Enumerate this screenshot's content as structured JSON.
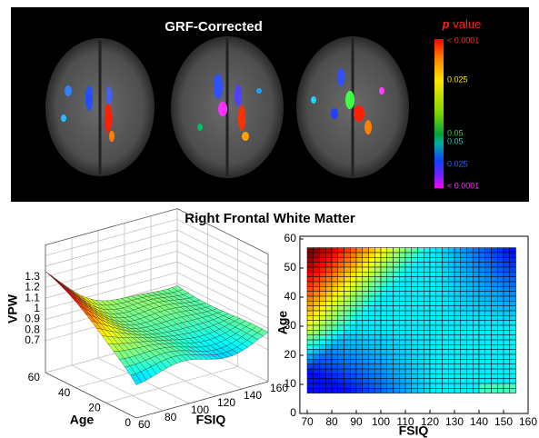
{
  "top_panel": {
    "title": "GRF-Corrected",
    "colorbar": {
      "title_symbol": "p",
      "title": "value",
      "labels": [
        "< 0.0001",
        "0.025",
        "0.05",
        "0.05",
        "0.025",
        "< 0.0001"
      ]
    }
  },
  "figure_title": "Right Frontal White Matter",
  "surface_plot": {
    "z_label": "VPW",
    "y_label": "Age",
    "x_label": "FSIQ",
    "z_ticks": [
      "0.7",
      "0.8",
      "0.9",
      "1",
      "1.1",
      "1.2",
      "1.3"
    ],
    "y_ticks": [
      "60",
      "40",
      "20",
      "0"
    ],
    "x_ticks": [
      "60",
      "80",
      "100",
      "120",
      "140",
      "160"
    ]
  },
  "heatmap": {
    "x_label": "FSIQ",
    "y_label": "Age",
    "x_ticks": [
      "70",
      "80",
      "90",
      "100",
      "110",
      "120",
      "130",
      "140",
      "150",
      "160"
    ],
    "y_ticks": [
      "0",
      "10",
      "20",
      "30",
      "40",
      "50",
      "60"
    ]
  }
}
